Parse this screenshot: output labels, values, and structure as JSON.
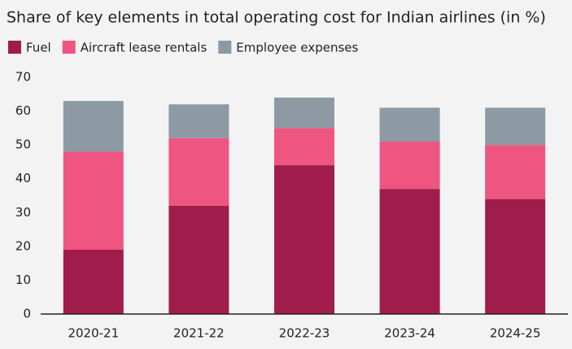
{
  "chart_data": {
    "type": "stacked-bar",
    "title": "Share of key elements in total operating cost for Indian airlines (in %)",
    "categories": [
      "2020-21",
      "2021-22",
      "2022-23",
      "2023-24",
      "2024-25"
    ],
    "series": [
      {
        "name": "Fuel",
        "color": "#a01c4b",
        "values": [
          19,
          32,
          44,
          37,
          34
        ]
      },
      {
        "name": "Aircraft lease rentals",
        "color": "#ee5580",
        "values": [
          29,
          20,
          11,
          14,
          16
        ]
      },
      {
        "name": "Employee expenses",
        "color": "#8d9aa3",
        "values": [
          15,
          10,
          9,
          10,
          11
        ]
      }
    ],
    "ylim": [
      0,
      70
    ],
    "yticks": [
      0,
      10,
      20,
      30,
      40,
      50,
      60,
      70
    ],
    "grid": false
  }
}
